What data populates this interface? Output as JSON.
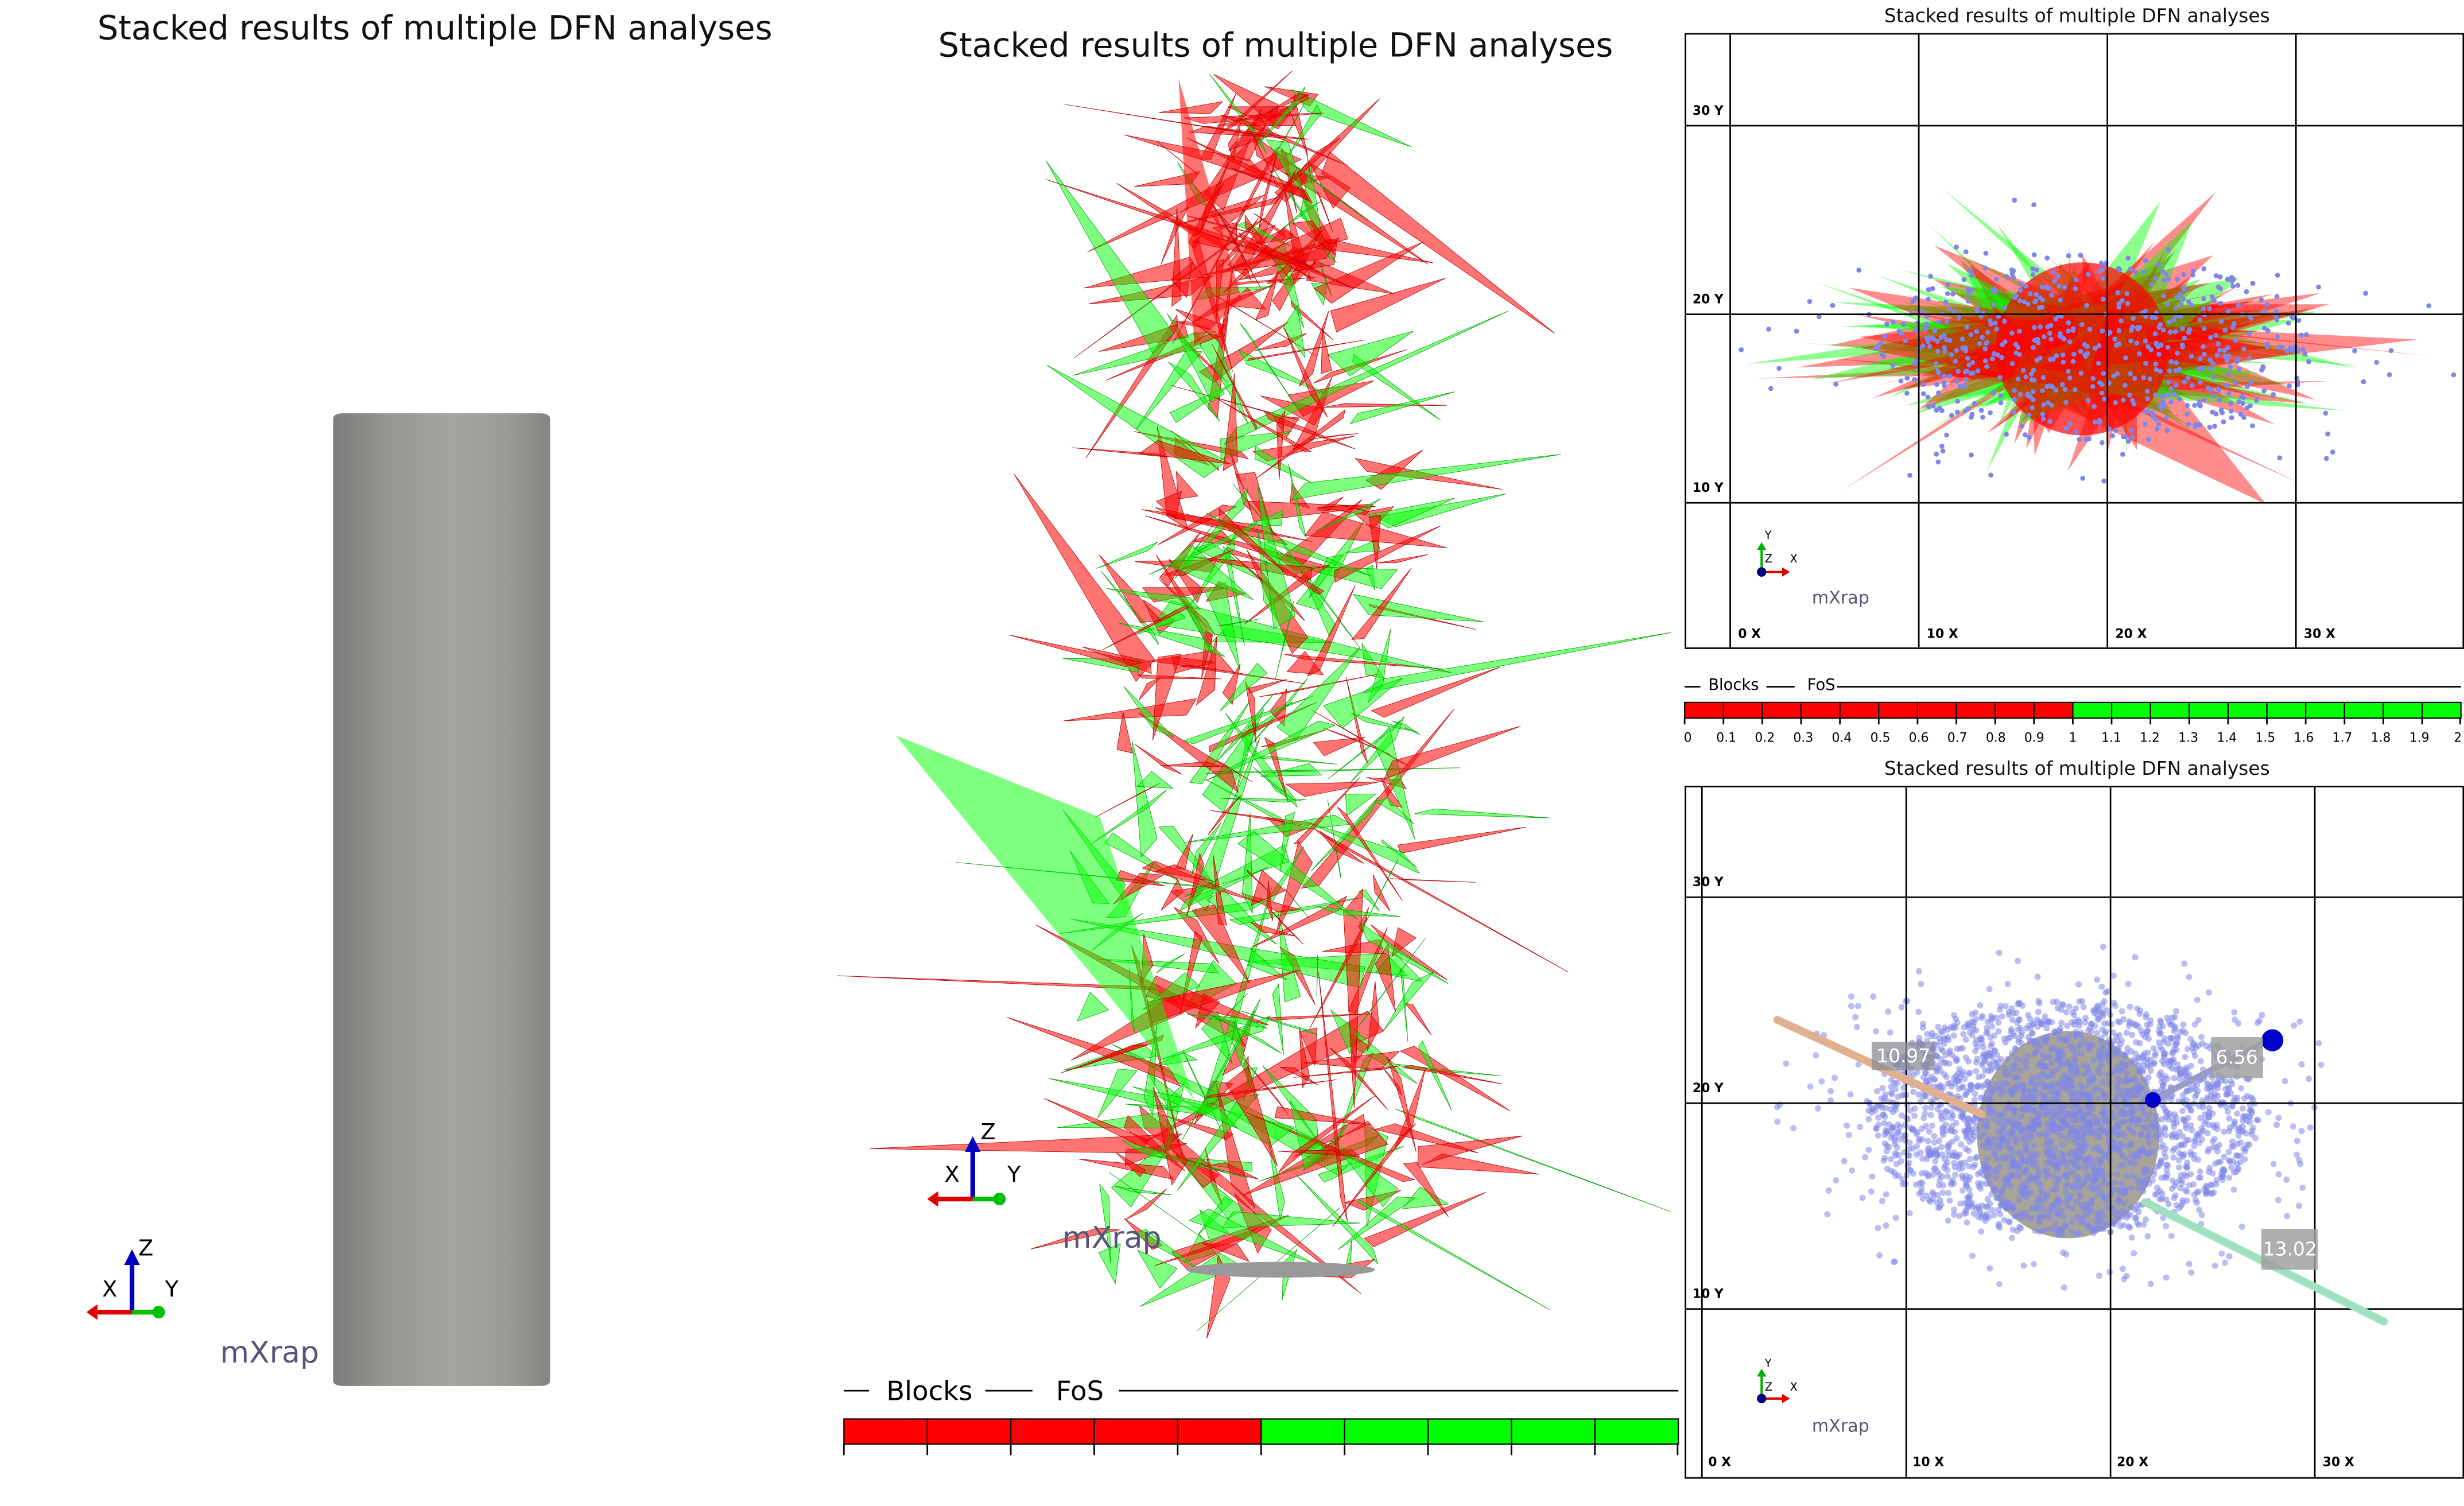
{
  "views": {
    "left": {
      "title": "Stacked results of multiple DFN analyses",
      "logo": "mXrap",
      "axes": {
        "x": "X",
        "y": "Y",
        "z": "Z"
      }
    },
    "center": {
      "title": "Stacked results of multiple DFN analyses",
      "logo": "mXrap",
      "axes": {
        "x": "X",
        "y": "Y",
        "z": "Z"
      }
    },
    "top_right": {
      "title": "Stacked results of multiple DFN analyses",
      "logo": "mXrap",
      "axes": {
        "x": "X",
        "y": "Y",
        "z": "Z"
      },
      "y_labels": [
        "30 Y",
        "20 Y",
        "10 Y"
      ],
      "x_labels": [
        "0 X",
        "10 X",
        "20 X",
        "30 X"
      ]
    },
    "bottom_right": {
      "title": "Stacked results of multiple DFN analyses",
      "logo": "mXrap",
      "axes": {
        "x": "X",
        "y": "Y",
        "z": "Z"
      },
      "y_labels": [
        "30 Y",
        "20 Y",
        "10 Y"
      ],
      "x_labels": [
        "0 X",
        "10 X",
        "20 X",
        "30 X"
      ],
      "measurements": [
        "10.97",
        "6.56",
        "13.02"
      ]
    }
  },
  "legend": {
    "layer": "Blocks",
    "attribute": "FoS",
    "ticks": [
      "0",
      "0.1",
      "0.2",
      "0.3",
      "0.4",
      "0.5",
      "0.6",
      "0.7",
      "0.8",
      "0.9",
      "1",
      "1.1",
      "1.2",
      "1.3",
      "1.4",
      "1.5",
      "1.6",
      "1.7",
      "1.8",
      "1.9",
      "2"
    ],
    "colors": {
      "below_1": "#ff0000",
      "above_1": "#00ff00"
    }
  },
  "colors": {
    "cylinder": "#9a9a96",
    "points": "#7f86e8"
  }
}
